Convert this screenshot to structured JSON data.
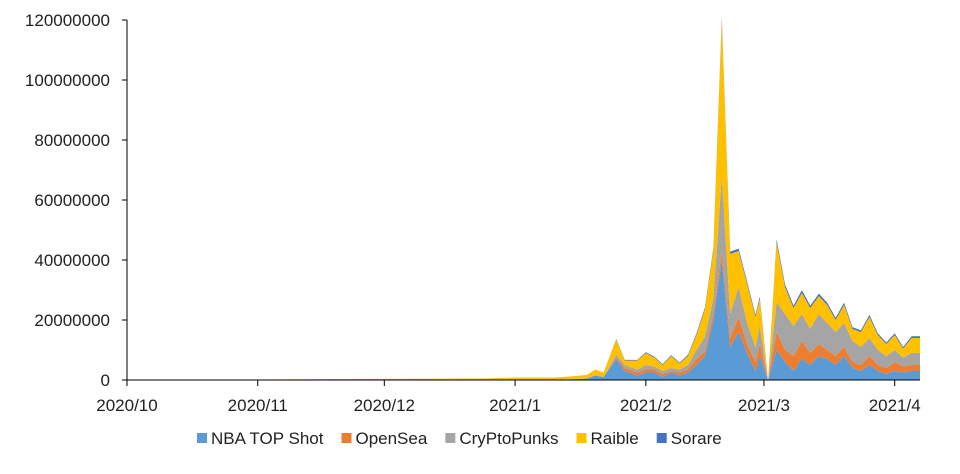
{
  "chart_data": {
    "type": "area",
    "stacked": true,
    "xlabel": "",
    "ylabel": "",
    "ylim": [
      0,
      120000000
    ],
    "yticks": [
      "0",
      "20000000",
      "40000000",
      "60000000",
      "80000000",
      "100000000",
      "120000000"
    ],
    "xlim": [
      "2020-10-01",
      "2021-04-07"
    ],
    "xticks": [
      {
        "date": "2020-10-01",
        "label": "2020/10"
      },
      {
        "date": "2020-11-01",
        "label": "2020/11"
      },
      {
        "date": "2020-12-01",
        "label": "2020/12"
      },
      {
        "date": "2021-01-01",
        "label": "2021/1"
      },
      {
        "date": "2021-02-01",
        "label": "2021/2"
      },
      {
        "date": "2021-03-01",
        "label": "2021/3"
      },
      {
        "date": "2021-04-01",
        "label": "2021/4"
      }
    ],
    "legend_position": "bottom",
    "x": [
      "2020-10-01",
      "2020-12-24",
      "2021-01-01",
      "2021-01-10",
      "2021-01-15",
      "2021-01-18",
      "2021-01-20",
      "2021-01-22",
      "2021-01-25",
      "2021-01-27",
      "2021-01-30",
      "2021-02-01",
      "2021-02-03",
      "2021-02-05",
      "2021-02-07",
      "2021-02-09",
      "2021-02-11",
      "2021-02-13",
      "2021-02-15",
      "2021-02-17",
      "2021-02-19",
      "2021-02-21",
      "2021-02-23",
      "2021-02-25",
      "2021-02-27",
      "2021-02-28",
      "2021-03-02",
      "2021-03-04",
      "2021-03-06",
      "2021-03-08",
      "2021-03-10",
      "2021-03-12",
      "2021-03-14",
      "2021-03-16",
      "2021-03-18",
      "2021-03-20",
      "2021-03-22",
      "2021-03-24",
      "2021-03-26",
      "2021-03-28",
      "2021-03-30",
      "2021-04-01",
      "2021-04-03",
      "2021-04-05",
      "2021-04-07"
    ],
    "series": [
      {
        "name": "NBA TOP Shot",
        "color": "#5b9bd5",
        "values": [
          0,
          0,
          0,
          100000,
          300000,
          500000,
          1500000,
          1000000,
          7000000,
          3000000,
          1500000,
          2500000,
          2500000,
          1000000,
          2500000,
          1500000,
          2500000,
          5000000,
          8000000,
          20000000,
          40000000,
          11000000,
          16000000,
          9000000,
          3000000,
          8000000,
          0,
          10000000,
          6000000,
          3000000,
          7000000,
          5000000,
          8000000,
          7000000,
          5000000,
          8000000,
          4000000,
          3000000,
          5000000,
          3000000,
          2000000,
          3000000,
          2500000,
          3000000,
          3000000
        ]
      },
      {
        "name": "OpenSea",
        "color": "#ed7d31",
        "values": [
          0,
          0,
          0,
          0,
          0,
          0,
          0,
          0,
          500000,
          1000000,
          1000000,
          1000000,
          1000000,
          1000000,
          500000,
          1000000,
          1000000,
          2000000,
          1500000,
          2000000,
          3000000,
          3000000,
          5000000,
          3000000,
          3000000,
          4000000,
          0,
          6000000,
          4000000,
          5000000,
          6000000,
          4000000,
          4000000,
          3000000,
          3000000,
          3000000,
          2000000,
          2000000,
          3000000,
          2000000,
          2000000,
          3000000,
          2000000,
          2000000,
          2000000
        ]
      },
      {
        "name": "CryPtoPunks",
        "color": "#a5a5a5",
        "values": [
          0,
          0,
          0,
          0,
          0,
          0,
          0,
          0,
          1000000,
          1000000,
          1000000,
          1500000,
          1000000,
          1000000,
          1000000,
          1000000,
          1500000,
          3000000,
          5000000,
          5000000,
          25000000,
          8000000,
          10000000,
          7000000,
          5000000,
          6000000,
          0,
          10000000,
          12000000,
          10000000,
          9000000,
          8000000,
          10000000,
          9000000,
          8000000,
          8000000,
          7000000,
          6000000,
          6000000,
          5000000,
          4000000,
          4000000,
          3000000,
          4000000,
          4000000
        ]
      },
      {
        "name": "Raible",
        "color": "#ffc000",
        "values": [
          0,
          500000,
          800000,
          700000,
          1000000,
          1200000,
          2000000,
          1500000,
          5000000,
          1500000,
          3000000,
          4000000,
          3000000,
          2000000,
          4000000,
          2000000,
          3000000,
          5000000,
          9000000,
          16000000,
          52000000,
          20000000,
          12000000,
          13000000,
          10000000,
          9000000,
          0,
          20000000,
          9000000,
          6000000,
          7000000,
          7000000,
          6000000,
          6000000,
          4000000,
          6000000,
          4000000,
          5000000,
          7000000,
          5000000,
          4000000,
          5000000,
          3000000,
          5000000,
          5000000
        ]
      },
      {
        "name": "Sorare",
        "color": "#4472c4",
        "values": [
          0,
          0,
          0,
          0,
          0,
          0,
          0,
          0,
          200000,
          200000,
          200000,
          300000,
          300000,
          300000,
          300000,
          300000,
          400000,
          500000,
          600000,
          800000,
          1000000,
          800000,
          800000,
          800000,
          700000,
          800000,
          0,
          900000,
          900000,
          800000,
          900000,
          800000,
          800000,
          800000,
          700000,
          800000,
          600000,
          600000,
          700000,
          600000,
          500000,
          600000,
          500000,
          600000,
          600000
        ]
      }
    ]
  }
}
